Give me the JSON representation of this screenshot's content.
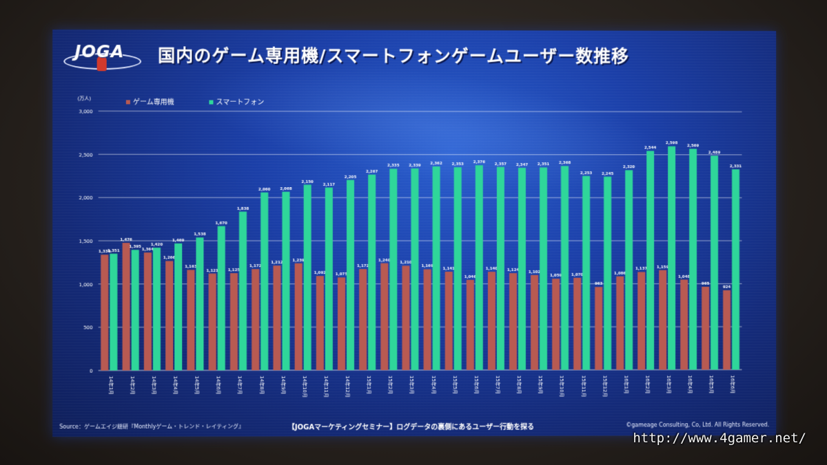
{
  "slide": {
    "logo_text": "JOGA",
    "title": "国内のゲーム専用機/スマートフォンゲームユーザー数推移",
    "footer_source": "Source：ゲームエイジ総研『Monthlyゲーム・トレンド・レイティング』",
    "footer_middle": "【JOGAマーケティングセミナー】ログデータの裏側にあるユーザー行動を探る",
    "footer_copyright": "©gameage Consulting, Co, Ltd. All Rights Reserved."
  },
  "watermark": "http://www.4gamer.net/",
  "colors": {
    "console": "#b85a52",
    "smartphone": "#2fd69a",
    "grid": "#ffffff",
    "text": "#ffffff"
  },
  "chart_data": {
    "type": "bar",
    "ylabel": "(万人)",
    "ylim": [
      0,
      3000
    ],
    "yticks": [
      0,
      500,
      1000,
      1500,
      2000,
      2500,
      3000
    ],
    "ytick_labels": [
      "0",
      "500",
      "1,000",
      "1,500",
      "2,000",
      "2,500",
      "3,000"
    ],
    "grid": true,
    "legend_position": "top-left",
    "categories": [
      "14年1月",
      "14年2月",
      "14年3月",
      "14年4月",
      "14年5月",
      "14年6月",
      "14年7月",
      "14年8月",
      "14年9月",
      "14年10月",
      "14年11月",
      "14年12月",
      "15年1月",
      "15年2月",
      "15年3月",
      "15年4月",
      "15年5月",
      "15年6月",
      "15年7月",
      "15年8月",
      "15年9月",
      "15年10月",
      "15年11月",
      "15年12月",
      "16年1月",
      "16年2月",
      "16年3月",
      "16年4月",
      "16年5月",
      "16年6月"
    ],
    "series": [
      {
        "name": "ゲーム専用機",
        "values": [
          1339,
          1476,
          1364,
          1266,
          1163,
          1121,
          1125,
          1172,
          1212,
          1239,
          1092,
          1075,
          1172,
          1240,
          1210,
          1169,
          1141,
          1046,
          1140,
          1124,
          1102,
          1059,
          1070,
          963,
          1086,
          1137,
          1159,
          1048,
          965,
          924
        ],
        "labels": [
          "1,339",
          "1,476",
          "1,364",
          "1,266",
          "1,163",
          "1,121",
          "1,125",
          "1,172",
          "1,212",
          "1,239",
          "1,092",
          "1,075",
          "1,172",
          "1,240",
          "1,210",
          "1,169",
          "1,141",
          "1,046",
          "1,140",
          "1,124",
          "1,102",
          "1,059",
          "1,070",
          "963",
          "1,086",
          "1,137",
          "1,159",
          "1,048",
          "965",
          "924"
        ]
      },
      {
        "name": "スマートフォン",
        "values": [
          1351,
          1395,
          1420,
          1469,
          1538,
          1670,
          1838,
          2060,
          2068,
          2150,
          2117,
          2205,
          2267,
          2335,
          2339,
          2362,
          2353,
          2376,
          2357,
          2347,
          2351,
          2368,
          2253,
          2245,
          2320,
          2544,
          2598,
          2569,
          2489,
          2331
        ],
        "labels": [
          "1,351",
          "1,395",
          "1,420",
          "1,469",
          "1,538",
          "1,670",
          "1,838",
          "2,060",
          "2,068",
          "2,150",
          "2,117",
          "2,205",
          "2,267",
          "2,335",
          "2,339",
          "2,362",
          "2,353",
          "2,376",
          "2,357",
          "2,347",
          "2,351",
          "2,368",
          "2,253",
          "2,245",
          "2,320",
          "2,544",
          "2,598",
          "2,569",
          "2,489",
          "2,331"
        ]
      }
    ]
  }
}
